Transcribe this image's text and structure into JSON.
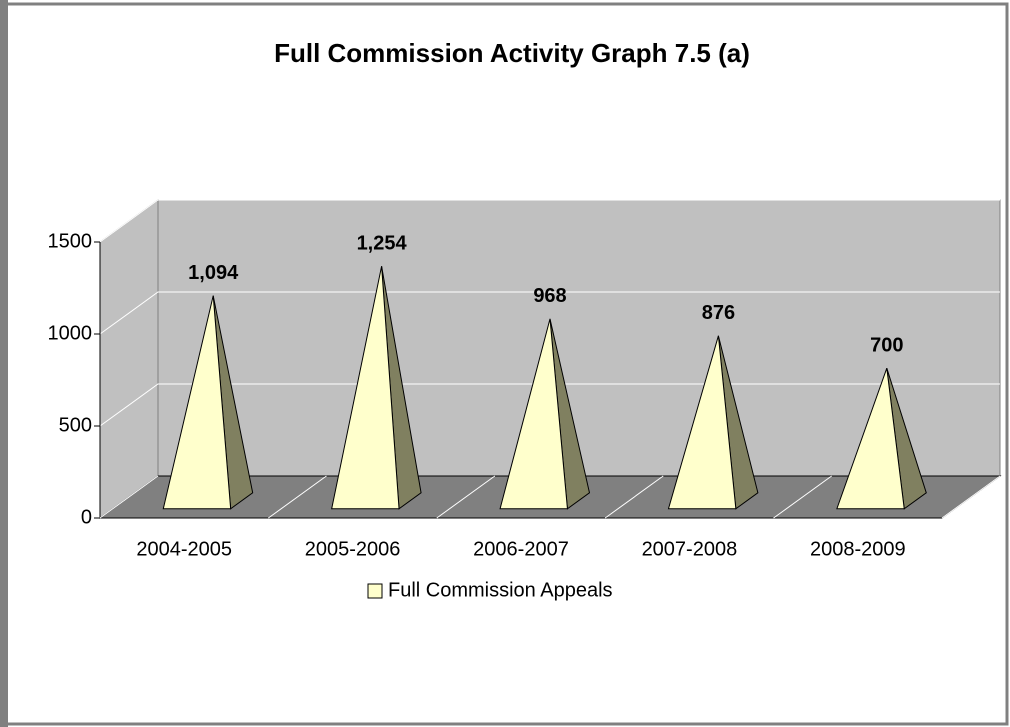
{
  "chart_data": {
    "type": "pyramid",
    "title": "Full Commission Activity Graph 7.5 (a)",
    "categories": [
      "2004-2005",
      "2005-2006",
      "2006-2007",
      "2007-2008",
      "2008-2009"
    ],
    "series": [
      {
        "name": "Full Commission Appeals",
        "color": "#ffffcc",
        "values": [
          1094,
          1254,
          968,
          876,
          700
        ],
        "value_labels": [
          "1,094",
          "1,254",
          "968",
          "876",
          "700"
        ]
      }
    ],
    "ylim": [
      0,
      1500
    ],
    "yticks": [
      0,
      500,
      1000,
      1500
    ],
    "grid": true,
    "legend": "bottom"
  }
}
